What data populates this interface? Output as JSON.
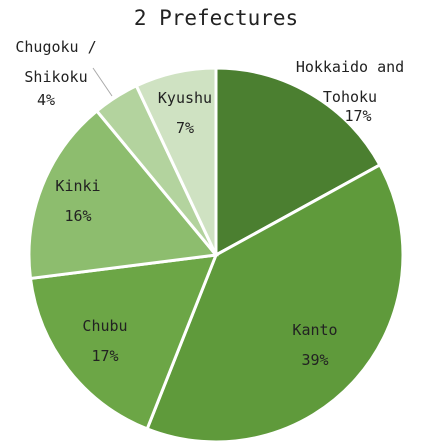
{
  "chart_data": {
    "type": "pie",
    "title": "2 Prefectures",
    "categories": [
      "Hokkaido and Tohoku",
      "Kanto",
      "Chubu",
      "Kinki",
      "Chugoku / Shikoku",
      "Kyushu"
    ],
    "values": [
      17,
      39,
      17,
      16,
      4,
      7
    ],
    "value_labels": [
      "17%",
      "39%",
      "17%",
      "16%",
      "4%",
      "7%"
    ],
    "colors": [
      "#4b7f30",
      "#5f9a3b",
      "#6ca646",
      "#8dbd6e",
      "#b3d39e",
      "#cfe2c2"
    ]
  }
}
